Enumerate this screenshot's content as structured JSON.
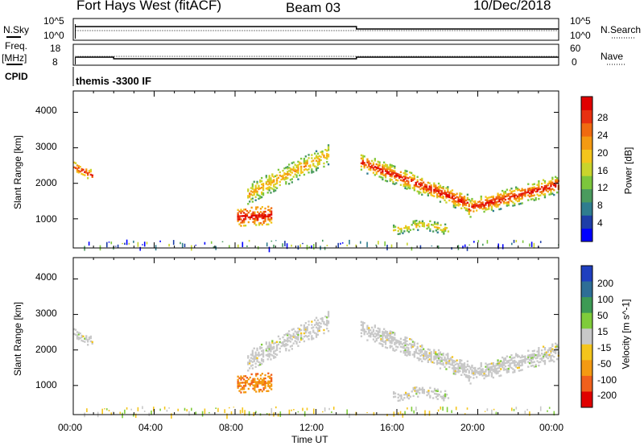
{
  "header": {
    "title": "Fort Hays West (fitACF)",
    "beam": "Beam 03",
    "date": "10/Dec/2018"
  },
  "strip": {
    "nsky_label": "N.Sky",
    "nsky_top": "10^5",
    "nsky_bot": "10^0",
    "nsearch_label": "N.Search",
    "nsearch_top": "10^5",
    "nsearch_bot": "10^0",
    "freq_label": "Freq.",
    "freq_unit": "[MHz]",
    "freq_top": "18",
    "freq_bot": "8",
    "nave_label": "Nave",
    "nave_top": "60",
    "nave_bot": "0",
    "cpid_label": "CPID",
    "cpid_text": "themis -3300 IF"
  },
  "chart_data": [
    {
      "type": "heatmap",
      "panel": "power",
      "ylabel": "Slant Range [km]",
      "ylim": [
        180,
        4600
      ],
      "yticks": [
        "1000",
        "2000",
        "3000",
        "4000"
      ],
      "xlabel": "Time UT",
      "xlim": [
        "00:00",
        "24:00"
      ],
      "xticks": [
        "00:00",
        "04:00",
        "08:00",
        "12:00",
        "16:00",
        "20:00",
        "00:00"
      ],
      "colorbar": {
        "label": "Power [dB]",
        "ticks": [
          "4",
          "8",
          "12",
          "16",
          "20",
          "24",
          "28"
        ],
        "range": [
          0,
          32
        ],
        "colors": [
          "#0000ff",
          "#1e3ea8",
          "#2f7d8f",
          "#4a9b5e",
          "#7cc63c",
          "#c9d42c",
          "#f4c51c",
          "#f49a12",
          "#f06a10",
          "#e83010",
          "#e00000"
        ]
      },
      "echo_regions": [
        {
          "t": [
            0.0,
            0.9
          ],
          "r": [
            2100,
            2700
          ],
          "level": "moderate"
        },
        {
          "t": [
            8.0,
            9.8
          ],
          "r": [
            800,
            1500
          ],
          "level": "strong"
        },
        {
          "t": [
            8.5,
            12.6
          ],
          "r": [
            1600,
            3000
          ],
          "level": "moderate"
        },
        {
          "t": [
            14.2,
            24.0
          ],
          "r": [
            1200,
            2900
          ],
          "level": "strong"
        },
        {
          "t": [
            15.8,
            18.6
          ],
          "r": [
            450,
            900
          ],
          "level": "moderate"
        }
      ]
    },
    {
      "type": "heatmap",
      "panel": "velocity",
      "ylabel": "Slant Range [km]",
      "ylim": [
        180,
        4600
      ],
      "yticks": [
        "1000",
        "2000",
        "3000",
        "4000"
      ],
      "xlabel": "Time UT",
      "xlim": [
        "00:00",
        "24:00"
      ],
      "xticks": [
        "00:00",
        "04:00",
        "08:00",
        "12:00",
        "16:00",
        "20:00",
        "00:00"
      ],
      "colorbar": {
        "label": "Velocity [m s^-1]",
        "ticks": [
          "200",
          "100",
          "50",
          "15",
          "-15",
          "-50",
          "-100",
          "-200"
        ],
        "colors": [
          "#1f3fbf",
          "#2e6e96",
          "#3d9a54",
          "#7fcc3a",
          "#c8c8c8",
          "#f4c51c",
          "#f49a12",
          "#f0601c",
          "#e00000"
        ]
      },
      "echo_regions": [
        {
          "t": [
            0.0,
            0.9
          ],
          "r": [
            2100,
            2700
          ],
          "class": "ground scatter"
        },
        {
          "t": [
            8.0,
            10.0
          ],
          "r": [
            800,
            1500
          ],
          "class": "-100 to -50"
        },
        {
          "t": [
            8.5,
            12.6
          ],
          "r": [
            1600,
            3000
          ],
          "class": "ground scatter"
        },
        {
          "t": [
            14.2,
            24.0
          ],
          "r": [
            1200,
            2900
          ],
          "class": "ground scatter"
        },
        {
          "t": [
            15.8,
            18.6
          ],
          "r": [
            450,
            900
          ],
          "class": "ground scatter"
        }
      ]
    }
  ]
}
